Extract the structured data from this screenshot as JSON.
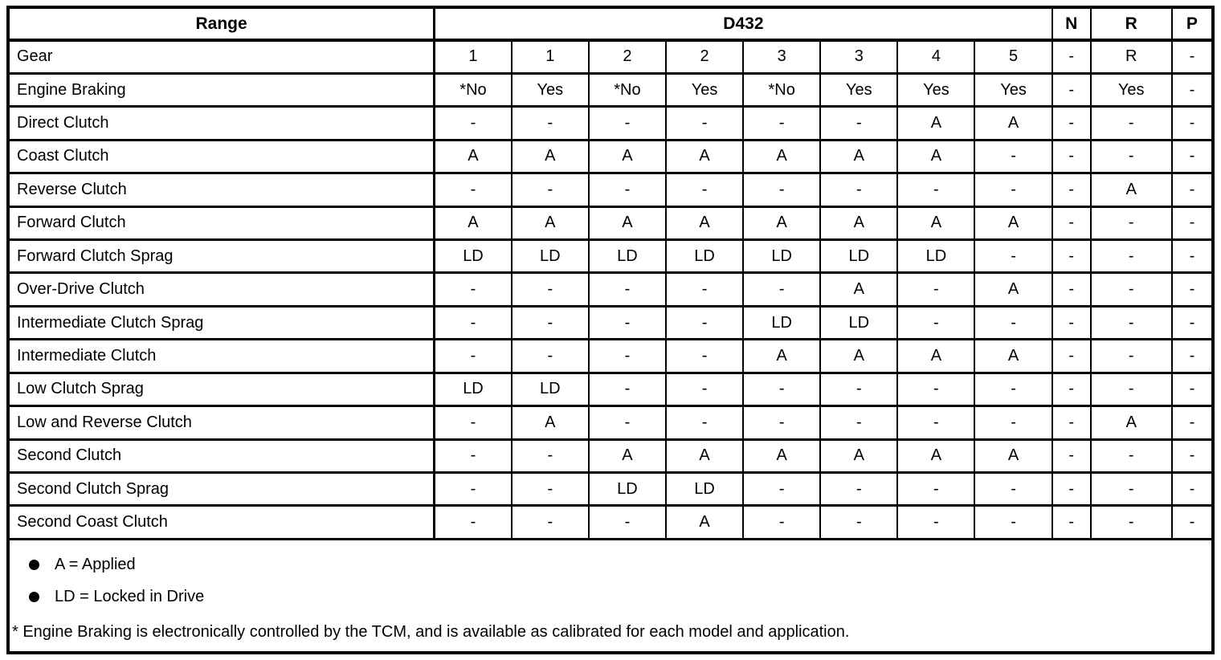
{
  "table": {
    "header": {
      "range": "Range",
      "group": "D432",
      "neutral": "N",
      "reverse": "R",
      "park": "P"
    },
    "rows": [
      {
        "label": "Gear",
        "cells": [
          "1",
          "1",
          "2",
          "2",
          "3",
          "3",
          "4",
          "5",
          "-",
          "R",
          "-"
        ]
      },
      {
        "label": "Engine Braking",
        "cells": [
          "*No",
          "Yes",
          "*No",
          "Yes",
          "*No",
          "Yes",
          "Yes",
          "Yes",
          "-",
          "Yes",
          "-"
        ]
      },
      {
        "label": "Direct Clutch",
        "cells": [
          "-",
          "-",
          "-",
          "-",
          "-",
          "-",
          "A",
          "A",
          "-",
          "-",
          "-"
        ]
      },
      {
        "label": "Coast Clutch",
        "cells": [
          "A",
          "A",
          "A",
          "A",
          "A",
          "A",
          "A",
          "-",
          "-",
          "-",
          "-"
        ]
      },
      {
        "label": "Reverse Clutch",
        "cells": [
          "-",
          "-",
          "-",
          "-",
          "-",
          "-",
          "-",
          "-",
          "-",
          "A",
          "-"
        ]
      },
      {
        "label": "Forward Clutch",
        "cells": [
          "A",
          "A",
          "A",
          "A",
          "A",
          "A",
          "A",
          "A",
          "-",
          "-",
          "-"
        ]
      },
      {
        "label": "Forward Clutch Sprag",
        "cells": [
          "LD",
          "LD",
          "LD",
          "LD",
          "LD",
          "LD",
          "LD",
          "-",
          "-",
          "-",
          "-"
        ]
      },
      {
        "label": "Over-Drive Clutch",
        "cells": [
          "-",
          "-",
          "-",
          "-",
          "-",
          "A",
          "-",
          "A",
          "-",
          "-",
          "-"
        ]
      },
      {
        "label": "Intermediate Clutch Sprag",
        "cells": [
          "-",
          "-",
          "-",
          "-",
          "LD",
          "LD",
          "-",
          "-",
          "-",
          "-",
          "-"
        ]
      },
      {
        "label": "Intermediate Clutch",
        "cells": [
          "-",
          "-",
          "-",
          "-",
          "A",
          "A",
          "A",
          "A",
          "-",
          "-",
          "-"
        ]
      },
      {
        "label": "Low Clutch Sprag",
        "cells": [
          "LD",
          "LD",
          "-",
          "-",
          "-",
          "-",
          "-",
          "-",
          "-",
          "-",
          "-"
        ]
      },
      {
        "label": "Low and Reverse Clutch",
        "cells": [
          "-",
          "A",
          "-",
          "-",
          "-",
          "-",
          "-",
          "-",
          "-",
          "A",
          "-"
        ]
      },
      {
        "label": "Second Clutch",
        "cells": [
          "-",
          "-",
          "A",
          "A",
          "A",
          "A",
          "A",
          "A",
          "-",
          "-",
          "-"
        ]
      },
      {
        "label": "Second Clutch Sprag",
        "cells": [
          "-",
          "-",
          "LD",
          "LD",
          "-",
          "-",
          "-",
          "-",
          "-",
          "-",
          "-"
        ]
      },
      {
        "label": "Second Coast Clutch",
        "cells": [
          "-",
          "-",
          "-",
          "A",
          "-",
          "-",
          "-",
          "-",
          "-",
          "-",
          "-"
        ]
      }
    ],
    "legend": [
      "A = Applied",
      "LD = Locked in Drive"
    ],
    "footnote": "* Engine Braking is electronically controlled by the TCM, and is available as calibrated for each model and application.",
    "colors": {
      "border": "#000000",
      "background": "#ffffff",
      "text": "#000000"
    }
  }
}
